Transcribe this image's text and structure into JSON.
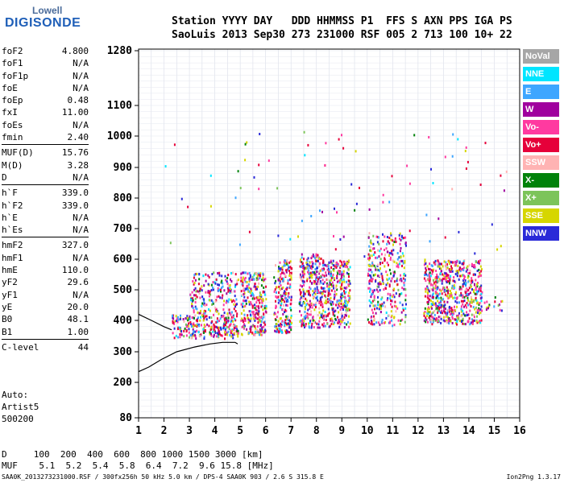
{
  "logo": {
    "line1": "Lowell",
    "line2": "DIGISONDE"
  },
  "header": {
    "labels": "Station YYYY DAY   DDD HHMMSS P1  FFS S AXN PPS IGA PS",
    "values": "SaoLuis 2013 Sep30 273 231000 RSF 005 2 713 100 10+ 22"
  },
  "params": [
    {
      "group": [
        [
          "foF2",
          "4.800"
        ],
        [
          "foF1",
          "N/A"
        ],
        [
          "foF1p",
          "N/A"
        ],
        [
          "foE",
          "N/A"
        ],
        [
          "foEp",
          "0.48"
        ],
        [
          "fxI",
          "11.00"
        ],
        [
          "foEs",
          "N/A"
        ],
        [
          "fmin",
          "2.40"
        ]
      ]
    },
    {
      "group": [
        [
          "MUF(D)",
          "15.76"
        ],
        [
          "M(D)",
          "3.28"
        ],
        [
          "D",
          "N/A"
        ]
      ]
    },
    {
      "group": [
        [
          "h`F",
          "339.0"
        ],
        [
          "h`F2",
          "339.0"
        ],
        [
          "h`E",
          "N/A"
        ],
        [
          "h`Es",
          "N/A"
        ]
      ]
    },
    {
      "group": [
        [
          "hmF2",
          "327.0"
        ],
        [
          "hmF1",
          "N/A"
        ],
        [
          "hmE",
          "110.0"
        ],
        [
          "yF2",
          "29.6"
        ],
        [
          "yF1",
          "N/A"
        ],
        [
          "yE",
          "20.0"
        ],
        [
          "B0",
          "48.1"
        ],
        [
          "B1",
          "1.00"
        ]
      ]
    },
    {
      "group": [
        [
          "C-level",
          "44"
        ]
      ]
    }
  ],
  "auto_block": [
    "Auto:",
    "Artist5",
    "500200"
  ],
  "legend": [
    {
      "label": "NoVal",
      "color": "#a6a6a6"
    },
    {
      "label": "NNE",
      "color": "#00e5ff"
    },
    {
      "label": "E",
      "color": "#3ea6ff"
    },
    {
      "label": "W",
      "color": "#a0009e"
    },
    {
      "label": "Vo-",
      "color": "#ff3aa0"
    },
    {
      "label": "Vo+",
      "color": "#e6003a"
    },
    {
      "label": "SSW",
      "color": "#ffb3b3"
    },
    {
      "label": "X-",
      "color": "#00820a"
    },
    {
      "label": "X+",
      "color": "#7cc45a"
    },
    {
      "label": "SSE",
      "color": "#d6d600"
    },
    {
      "label": "NNW",
      "color": "#2a2ad8"
    }
  ],
  "bottom_rows": {
    "d_line": "D     100  200  400  600  800 1000 1500 3000 [km]",
    "muf_line": "MUF    5.1  5.2  5.4  5.8  6.4  7.2  9.6 15.8 [MHz]"
  },
  "footer": "SAA0K_2013273231000.RSF / 300fx256h 50 kHz 5.0 km / DPS-4 SAA0K 903 / 2.6 S 315.8 E",
  "version": "Ion2Png 1.3.17",
  "chart_data": {
    "type": "scatter",
    "title": "",
    "xlabel": "",
    "ylabel": "",
    "xlim": [
      1,
      16
    ],
    "ylim": [
      80,
      1280
    ],
    "x_ticks": [
      1,
      2,
      3,
      4,
      5,
      6,
      7,
      8,
      9,
      10,
      11,
      12,
      13,
      14,
      15,
      16
    ],
    "y_ticks": [
      80,
      200,
      300,
      400,
      500,
      600,
      700,
      800,
      900,
      1000,
      1100,
      1280
    ],
    "grid": true,
    "legend_placement": "right",
    "echo_blocks": [
      {
        "x": [
          2.3,
          4.9
        ],
        "y": [
          345,
          420
        ],
        "density": "high"
      },
      {
        "x": [
          3.0,
          4.9
        ],
        "y": [
          420,
          560
        ],
        "density": "medium"
      },
      {
        "x": [
          5.0,
          6.0
        ],
        "y": [
          355,
          560
        ],
        "density": "high"
      },
      {
        "x": [
          6.3,
          7.0
        ],
        "y": [
          360,
          600
        ],
        "density": "high"
      },
      {
        "x": [
          7.3,
          8.2
        ],
        "y": [
          380,
          620
        ],
        "density": "high"
      },
      {
        "x": [
          8.2,
          9.3
        ],
        "y": [
          380,
          600
        ],
        "density": "high"
      },
      {
        "x": [
          10.0,
          11.5
        ],
        "y": [
          385,
          690
        ],
        "density": "medium"
      },
      {
        "x": [
          12.2,
          14.5
        ],
        "y": [
          390,
          600
        ],
        "density": "high"
      },
      {
        "x": [
          14.5,
          15.3
        ],
        "y": [
          430,
          480
        ],
        "density": "low"
      }
    ],
    "trace_curve": {
      "x": [
        1.0,
        1.4,
        1.9,
        2.5,
        3.2,
        3.8,
        4.3,
        4.8,
        4.9
      ],
      "y": [
        235,
        250,
        275,
        300,
        315,
        325,
        330,
        330,
        325
      ]
    },
    "trace_upper": {
      "x": [
        1.0,
        1.5,
        2.0,
        2.3
      ],
      "y": [
        420,
        400,
        380,
        370
      ]
    }
  }
}
